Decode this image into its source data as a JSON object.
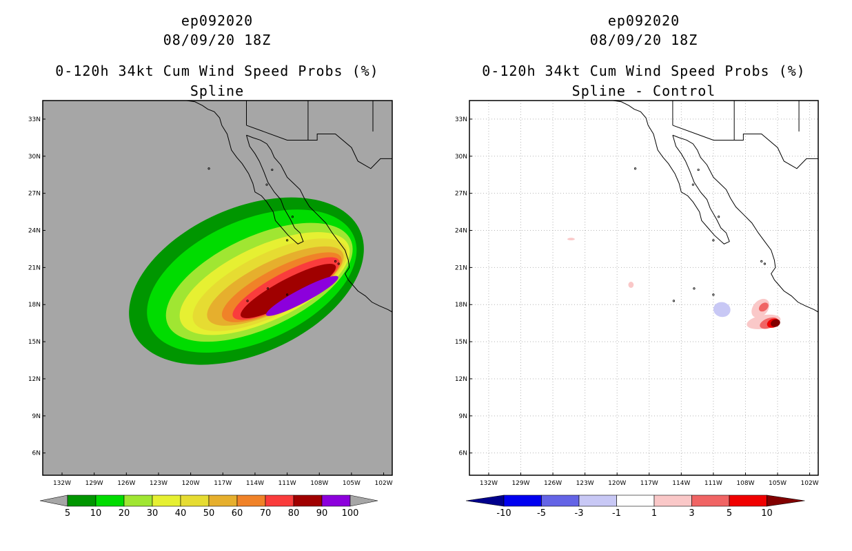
{
  "chart_data": [
    {
      "type": "heatmap",
      "storm_id": "ep092020",
      "datetime": "08/09/20 18Z",
      "title": "0-120h 34kt Cum Wind Speed Probs (%)",
      "subtitle": "Spline",
      "lat_ticks": [
        "33N",
        "30N",
        "27N",
        "24N",
        "21N",
        "18N",
        "15N",
        "12N",
        "9N",
        "6N"
      ],
      "lon_ticks": [
        "132W",
        "129W",
        "126W",
        "123W",
        "120W",
        "117W",
        "114W",
        "111W",
        "108W",
        "105W",
        "102W"
      ],
      "xlim_lon": [
        -133.8,
        -101.2
      ],
      "ylim_lat": [
        4.2,
        34.5
      ],
      "background_color": "#a6a6a6",
      "colorbar": {
        "labels": [
          "5",
          "10",
          "20",
          "30",
          "40",
          "50",
          "60",
          "70",
          "80",
          "90",
          "100"
        ],
        "colors": [
          "#009600",
          "#00dc00",
          "#a0e632",
          "#e6f032",
          "#e6dc32",
          "#e6af2d",
          "#f08228",
          "#fa3c3c",
          "#a00000",
          "#8c00dc"
        ]
      },
      "contours": [
        {
          "level": 5,
          "color": "#009600",
          "center": [
            -114.8,
            19.9
          ],
          "semi_axes_deg": [
            11.6,
            5.9
          ],
          "angle_deg": -24
        },
        {
          "level": 10,
          "color": "#00dc00",
          "center": [
            -114.3,
            19.9
          ],
          "semi_axes_deg": [
            10.4,
            4.9
          ],
          "angle_deg": -24
        },
        {
          "level": 20,
          "color": "#a0e632",
          "center": [
            -113.6,
            19.8
          ],
          "semi_axes_deg": [
            9.4,
            3.7
          ],
          "angle_deg": -25
        },
        {
          "level": 30,
          "color": "#e6f032",
          "center": [
            -113.1,
            19.7
          ],
          "semi_axes_deg": [
            8.6,
            3.0
          ],
          "angle_deg": -25
        },
        {
          "level": 40,
          "color": "#e6dc32",
          "center": [
            -112.6,
            19.6
          ],
          "semi_axes_deg": [
            7.9,
            2.5
          ],
          "angle_deg": -26
        },
        {
          "level": 50,
          "color": "#e6af2d",
          "center": [
            -112.1,
            19.5
          ],
          "semi_axes_deg": [
            7.0,
            2.0
          ],
          "angle_deg": -26
        },
        {
          "level": 60,
          "color": "#f08228",
          "center": [
            -111.5,
            19.4
          ],
          "semi_axes_deg": [
            6.2,
            1.6
          ],
          "angle_deg": -27
        },
        {
          "level": 70,
          "color": "#fa3c3c",
          "center": [
            -111.1,
            19.3
          ],
          "semi_axes_deg": [
            5.6,
            1.25
          ],
          "angle_deg": -28
        },
        {
          "level": 80,
          "color": "#a00000",
          "center": [
            -110.9,
            19.1
          ],
          "semi_axes_deg": [
            5.0,
            0.95
          ],
          "angle_deg": -28
        },
        {
          "level": 90,
          "color": "#8c00dc",
          "center": [
            -109.6,
            18.7
          ],
          "semi_axes_deg": [
            3.8,
            0.55
          ],
          "angle_deg": -28
        }
      ]
    },
    {
      "type": "heatmap",
      "storm_id": "ep092020",
      "datetime": "08/09/20 18Z",
      "title": "0-120h 34kt Cum Wind Speed Probs (%)",
      "subtitle": "Spline - Control",
      "lat_ticks": [
        "33N",
        "30N",
        "27N",
        "24N",
        "21N",
        "18N",
        "15N",
        "12N",
        "9N",
        "6N"
      ],
      "lon_ticks": [
        "132W",
        "129W",
        "126W",
        "123W",
        "120W",
        "117W",
        "114W",
        "111W",
        "108W",
        "105W",
        "102W"
      ],
      "xlim_lon": [
        -133.8,
        -101.2
      ],
      "ylim_lat": [
        4.2,
        34.5
      ],
      "background_color": "#ffffff",
      "grid": true,
      "colorbar": {
        "labels": [
          "-10",
          "-5",
          "-3",
          "-1",
          "1",
          "3",
          "5",
          "10"
        ],
        "colors": [
          "#00008c",
          "#0000f0",
          "#6464e6",
          "#c8c8f5",
          "#ffffff",
          "#fac8c8",
          "#f06464",
          "#f00000",
          "#820000"
        ]
      },
      "contours": [
        {
          "level": -1,
          "color": "#c8c8f5",
          "center": [
            -110.2,
            17.6
          ],
          "semi_axes_deg": [
            0.8,
            0.6
          ],
          "angle_deg": 10
        },
        {
          "level": 1,
          "color": "#fac8c8",
          "center": [
            -106.6,
            17.7
          ],
          "semi_axes_deg": [
            1.0,
            0.6
          ],
          "angle_deg": -50
        },
        {
          "level": 1,
          "color": "#fac8c8",
          "center": [
            -106.3,
            16.6
          ],
          "semi_axes_deg": [
            1.6,
            0.55
          ],
          "angle_deg": -10
        },
        {
          "level": 3,
          "color": "#f06464",
          "center": [
            -106.3,
            17.8
          ],
          "semi_axes_deg": [
            0.5,
            0.3
          ],
          "angle_deg": -40
        },
        {
          "level": 3,
          "color": "#f06464",
          "center": [
            -105.8,
            16.5
          ],
          "semi_axes_deg": [
            0.9,
            0.4
          ],
          "angle_deg": -20
        },
        {
          "level": 5,
          "color": "#f00000",
          "center": [
            -105.4,
            16.5
          ],
          "semi_axes_deg": [
            0.6,
            0.35
          ],
          "angle_deg": -20
        },
        {
          "level": 10,
          "color": "#820000",
          "center": [
            -105.2,
            16.5
          ],
          "semi_axes_deg": [
            0.45,
            0.3
          ],
          "angle_deg": -20
        },
        {
          "level": 1,
          "color": "#fac8c8",
          "center": [
            -118.7,
            19.6
          ],
          "semi_axes_deg": [
            0.25,
            0.25
          ],
          "angle_deg": 0
        },
        {
          "level": 1,
          "color": "#fac8c8",
          "center": [
            -124.3,
            23.3
          ],
          "semi_axes_deg": [
            0.35,
            0.1
          ],
          "angle_deg": 0
        }
      ]
    }
  ]
}
